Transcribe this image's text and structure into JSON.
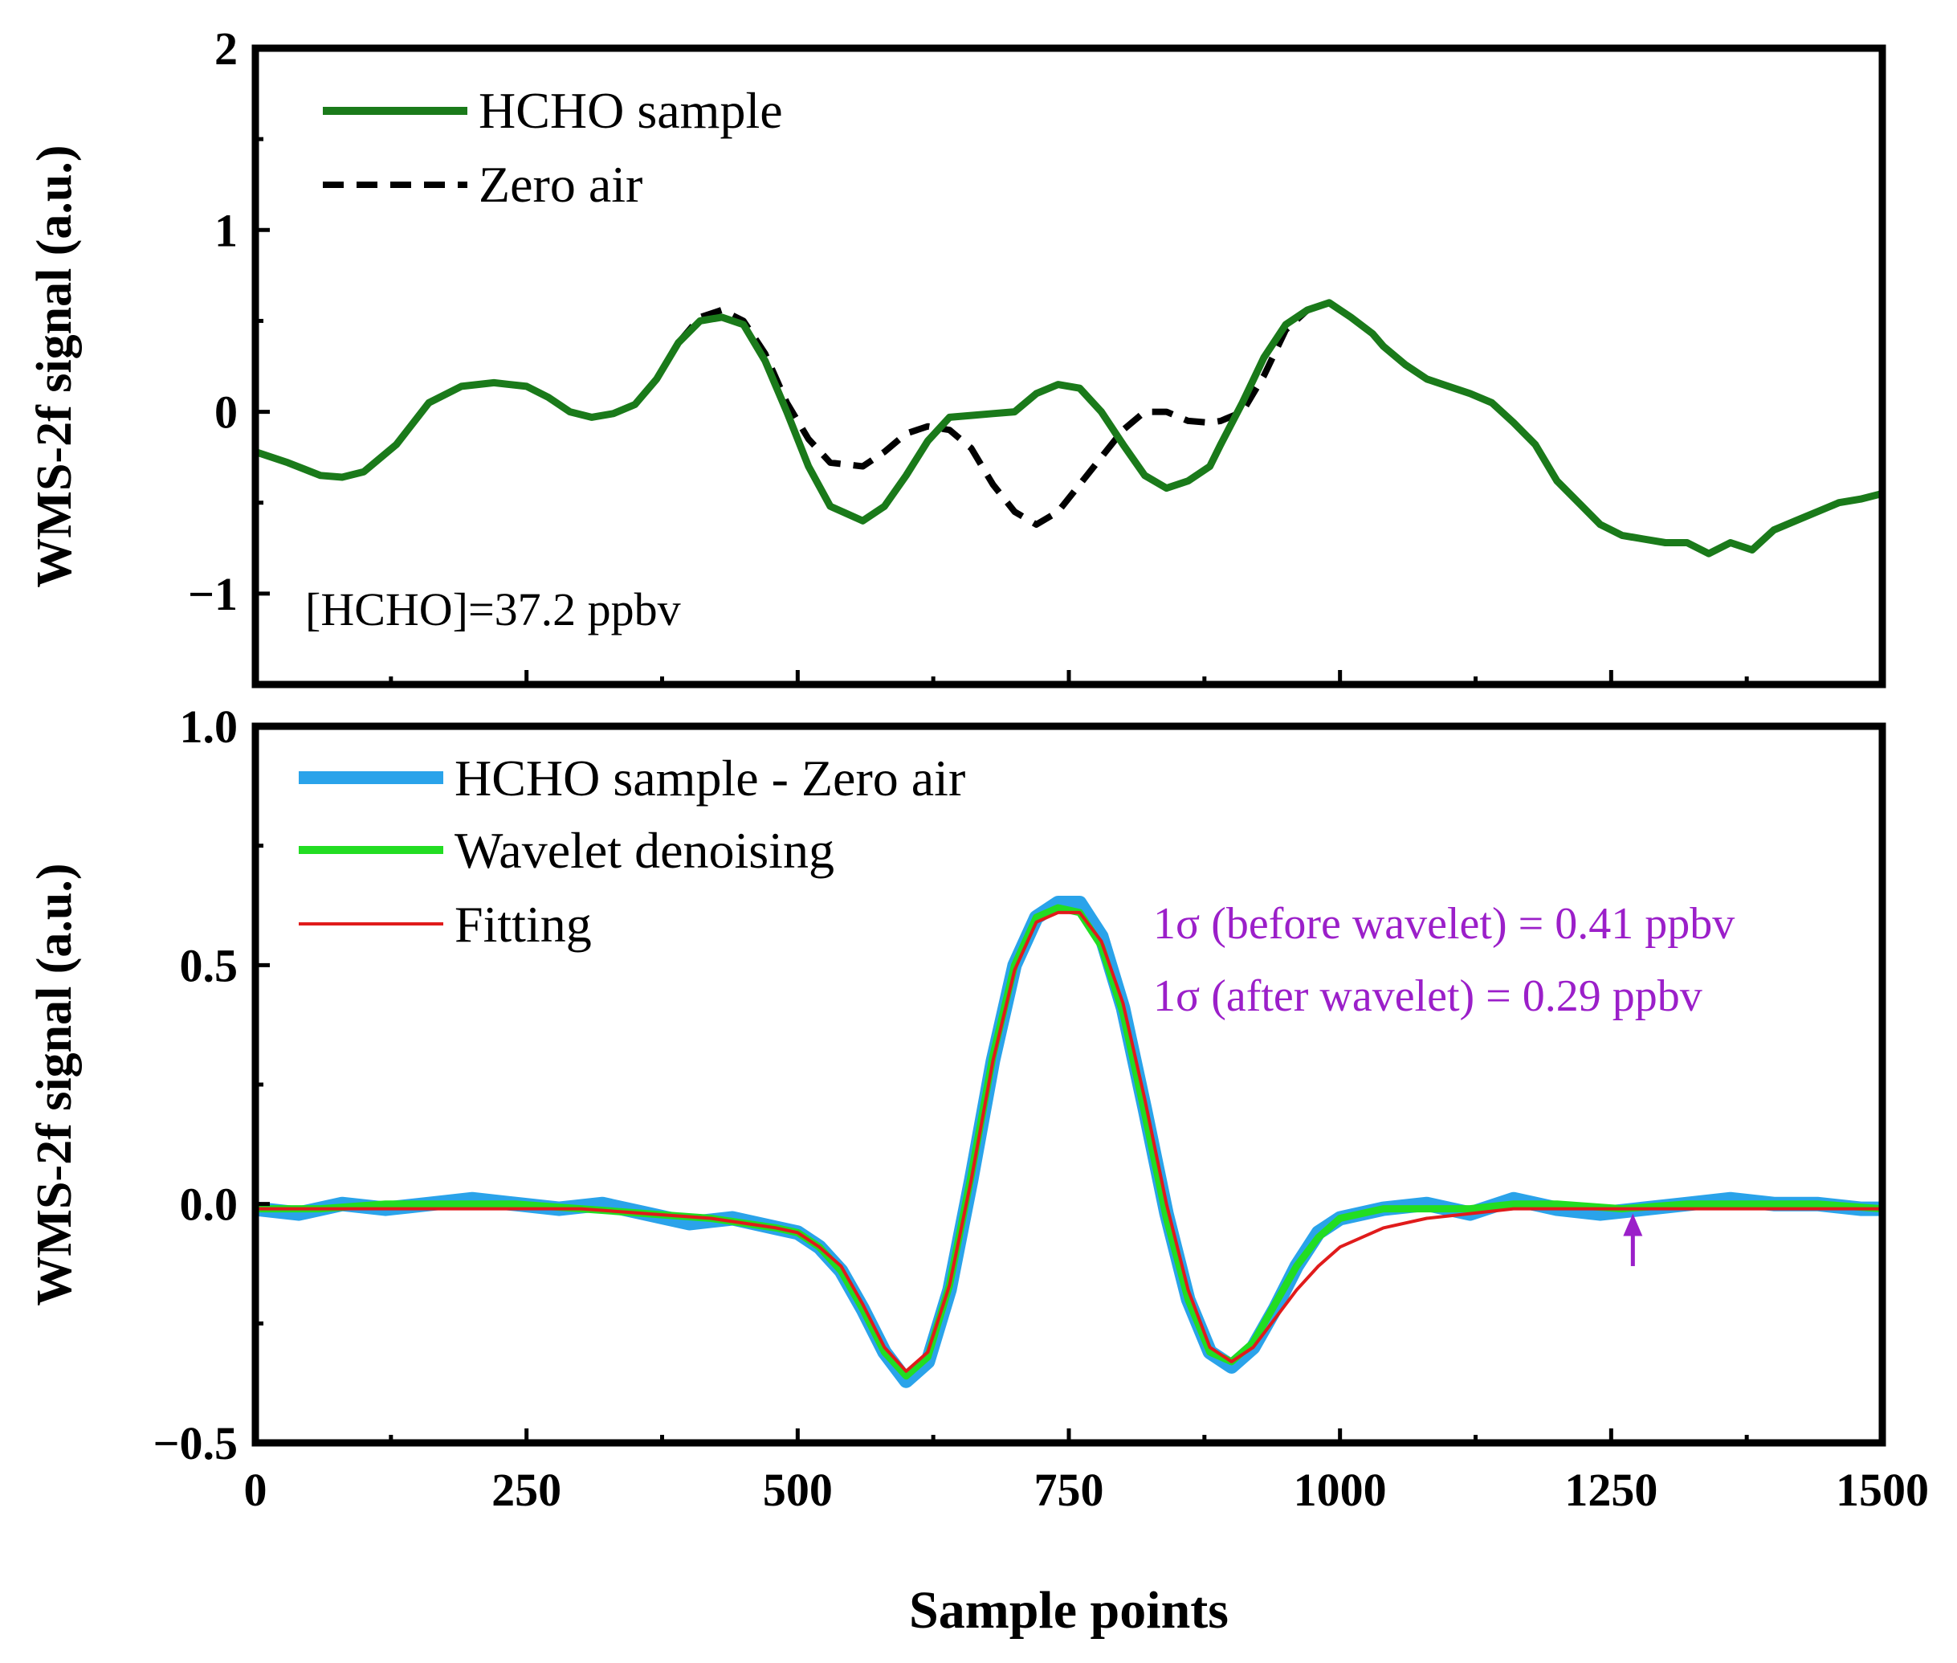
{
  "colors": {
    "hcho_sample": "#1a7a1a",
    "zero_air": "#000000",
    "difference": "#2aa3ea",
    "wavelet": "#22dd22",
    "fitting": "#e01b1b",
    "annotation": "#9b1fc9"
  },
  "chart_data": [
    {
      "type": "line",
      "panel": "top",
      "ylabel": "WMS-2f signal (a.u.)",
      "xlabel": "",
      "xlim": [
        0,
        1500
      ],
      "ylim": [
        -1.5,
        2
      ],
      "yticks": [
        -1,
        0,
        1,
        2
      ],
      "ytick_labels": [
        "−1",
        "0",
        "1",
        "2"
      ],
      "xticks": [
        0,
        250,
        500,
        750,
        1000,
        1250,
        1500
      ],
      "annotation": "[HCHO]=37.2 ppbv",
      "series": [
        {
          "name": "HCHO sample",
          "style": "solid",
          "x": [
            0,
            30,
            60,
            80,
            100,
            130,
            160,
            190,
            220,
            250,
            270,
            290,
            310,
            330,
            350,
            370,
            390,
            410,
            430,
            450,
            470,
            490,
            510,
            530,
            560,
            580,
            600,
            620,
            640,
            660,
            680,
            700,
            720,
            740,
            760,
            780,
            800,
            820,
            840,
            860,
            880,
            890,
            910,
            930,
            950,
            970,
            990,
            1010,
            1030,
            1040,
            1060,
            1080,
            1100,
            1120,
            1140,
            1160,
            1180,
            1200,
            1220,
            1240,
            1260,
            1280,
            1300,
            1320,
            1340,
            1360,
            1380,
            1400,
            1420,
            1440,
            1460,
            1480,
            1500
          ],
          "y": [
            -0.22,
            -0.28,
            -0.35,
            -0.36,
            -0.33,
            -0.18,
            0.05,
            0.14,
            0.16,
            0.14,
            0.08,
            0.0,
            -0.03,
            -0.01,
            0.04,
            0.18,
            0.38,
            0.5,
            0.52,
            0.48,
            0.28,
            0.0,
            -0.3,
            -0.52,
            -0.6,
            -0.52,
            -0.35,
            -0.16,
            -0.03,
            -0.02,
            -0.01,
            0.0,
            0.1,
            0.15,
            0.13,
            0.0,
            -0.18,
            -0.35,
            -0.42,
            -0.38,
            -0.3,
            -0.18,
            0.05,
            0.3,
            0.48,
            0.56,
            0.6,
            0.52,
            0.43,
            0.36,
            0.26,
            0.18,
            0.14,
            0.1,
            0.05,
            -0.06,
            -0.18,
            -0.38,
            -0.5,
            -0.62,
            -0.68,
            -0.7,
            -0.72,
            -0.72,
            -0.78,
            -0.72,
            -0.76,
            -0.65,
            -0.6,
            -0.55,
            -0.5,
            -0.48,
            -0.45
          ]
        },
        {
          "name": "Zero air",
          "style": "dashed",
          "x": [
            0,
            30,
            60,
            80,
            100,
            130,
            160,
            190,
            220,
            250,
            270,
            290,
            310,
            330,
            350,
            370,
            390,
            410,
            430,
            450,
            470,
            490,
            510,
            530,
            560,
            580,
            600,
            620,
            640,
            660,
            680,
            700,
            720,
            740,
            760,
            780,
            800,
            820,
            840,
            860,
            880,
            890,
            910,
            930,
            950,
            970,
            990,
            1010,
            1030,
            1040,
            1060,
            1080,
            1100,
            1120,
            1140,
            1160,
            1180,
            1200,
            1220,
            1240,
            1260,
            1280,
            1300,
            1320,
            1340,
            1360,
            1380,
            1400,
            1420,
            1440,
            1460,
            1480,
            1500
          ],
          "y": [
            -0.22,
            -0.28,
            -0.35,
            -0.36,
            -0.33,
            -0.18,
            0.05,
            0.14,
            0.16,
            0.14,
            0.08,
            0.0,
            -0.03,
            -0.01,
            0.04,
            0.18,
            0.38,
            0.52,
            0.56,
            0.5,
            0.32,
            0.05,
            -0.15,
            -0.28,
            -0.3,
            -0.22,
            -0.12,
            -0.08,
            -0.1,
            -0.2,
            -0.4,
            -0.55,
            -0.62,
            -0.55,
            -0.4,
            -0.25,
            -0.1,
            0.0,
            0.0,
            -0.05,
            -0.06,
            -0.05,
            0.0,
            0.2,
            0.45,
            0.56,
            0.6,
            0.52,
            0.43,
            0.36,
            0.26,
            0.18,
            0.14,
            0.1,
            0.05,
            -0.06,
            -0.18,
            -0.38,
            -0.5,
            -0.62,
            -0.68,
            -0.7,
            -0.72,
            -0.72,
            -0.78,
            -0.72,
            -0.76,
            -0.65,
            -0.6,
            -0.55,
            -0.5,
            -0.48,
            -0.45
          ]
        }
      ]
    },
    {
      "type": "line",
      "panel": "bottom",
      "ylabel": "WMS-2f signal (a.u.)",
      "xlabel": "Sample points",
      "xlim": [
        0,
        1500
      ],
      "ylim": [
        -0.5,
        1.0
      ],
      "yticks": [
        -0.5,
        0.0,
        0.5,
        1.0
      ],
      "ytick_labels": [
        "−0.5",
        "0.0",
        "0.5",
        "1.0"
      ],
      "xticks": [
        0,
        250,
        500,
        750,
        1000,
        1250,
        1500
      ],
      "xtick_labels": [
        "0",
        "250",
        "500",
        "750",
        "1000",
        "1250",
        "1500"
      ],
      "annotations": [
        "1σ (before wavelet) = 0.41 ppbv",
        "1σ (after wavelet) = 0.29 ppbv"
      ],
      "arrow": {
        "x": 1270,
        "y_from": -0.13,
        "y_to": -0.02
      },
      "series": [
        {
          "name": "HCHO sample - Zero air",
          "x": [
            0,
            40,
            80,
            120,
            160,
            200,
            240,
            280,
            320,
            360,
            400,
            440,
            480,
            500,
            520,
            540,
            560,
            580,
            600,
            620,
            640,
            660,
            680,
            700,
            720,
            740,
            760,
            780,
            800,
            820,
            840,
            860,
            880,
            900,
            920,
            940,
            960,
            980,
            1000,
            1040,
            1080,
            1120,
            1160,
            1200,
            1240,
            1280,
            1320,
            1360,
            1400,
            1440,
            1480,
            1500
          ],
          "y": [
            -0.01,
            -0.02,
            0.0,
            -0.01,
            0.0,
            0.01,
            0.0,
            -0.01,
            0.0,
            -0.02,
            -0.04,
            -0.03,
            -0.05,
            -0.06,
            -0.09,
            -0.14,
            -0.22,
            -0.31,
            -0.37,
            -0.33,
            -0.18,
            0.05,
            0.3,
            0.5,
            0.6,
            0.63,
            0.63,
            0.56,
            0.41,
            0.2,
            -0.02,
            -0.2,
            -0.31,
            -0.34,
            -0.3,
            -0.22,
            -0.13,
            -0.06,
            -0.03,
            -0.01,
            0.0,
            -0.02,
            0.01,
            -0.01,
            -0.02,
            -0.01,
            0.0,
            0.01,
            0.0,
            0.0,
            -0.01,
            -0.01
          ]
        },
        {
          "name": "Wavelet denoising",
          "x": [
            0,
            60,
            120,
            180,
            240,
            300,
            360,
            420,
            480,
            500,
            520,
            540,
            560,
            580,
            600,
            620,
            640,
            660,
            680,
            700,
            720,
            740,
            760,
            780,
            800,
            820,
            840,
            860,
            880,
            900,
            920,
            940,
            960,
            980,
            1000,
            1040,
            1080,
            1120,
            1160,
            1200,
            1260,
            1320,
            1380,
            1440,
            1500
          ],
          "y": [
            -0.01,
            -0.01,
            0.0,
            0.0,
            0.0,
            -0.01,
            -0.02,
            -0.03,
            -0.05,
            -0.06,
            -0.09,
            -0.14,
            -0.22,
            -0.31,
            -0.36,
            -0.32,
            -0.17,
            0.06,
            0.31,
            0.5,
            0.6,
            0.62,
            0.61,
            0.54,
            0.4,
            0.19,
            -0.03,
            -0.2,
            -0.31,
            -0.33,
            -0.29,
            -0.21,
            -0.13,
            -0.07,
            -0.03,
            -0.01,
            -0.01,
            -0.01,
            0.0,
            0.0,
            -0.01,
            0.0,
            0.0,
            0.0,
            -0.01
          ]
        },
        {
          "name": "Fitting",
          "x": [
            0,
            60,
            120,
            180,
            240,
            300,
            360,
            420,
            480,
            500,
            520,
            540,
            560,
            580,
            600,
            620,
            640,
            660,
            680,
            700,
            720,
            740,
            760,
            780,
            800,
            820,
            840,
            860,
            880,
            900,
            920,
            940,
            960,
            980,
            1000,
            1040,
            1080,
            1120,
            1160,
            1200,
            1260,
            1320,
            1380,
            1440,
            1500
          ],
          "y": [
            -0.01,
            -0.01,
            -0.01,
            -0.01,
            -0.01,
            -0.01,
            -0.02,
            -0.03,
            -0.05,
            -0.06,
            -0.09,
            -0.13,
            -0.21,
            -0.3,
            -0.35,
            -0.31,
            -0.17,
            0.05,
            0.3,
            0.49,
            0.59,
            0.61,
            0.61,
            0.55,
            0.42,
            0.22,
            0.0,
            -0.18,
            -0.3,
            -0.33,
            -0.3,
            -0.24,
            -0.18,
            -0.13,
            -0.09,
            -0.05,
            -0.03,
            -0.02,
            -0.01,
            -0.01,
            -0.01,
            -0.01,
            -0.01,
            -0.01,
            -0.01
          ]
        }
      ]
    }
  ]
}
